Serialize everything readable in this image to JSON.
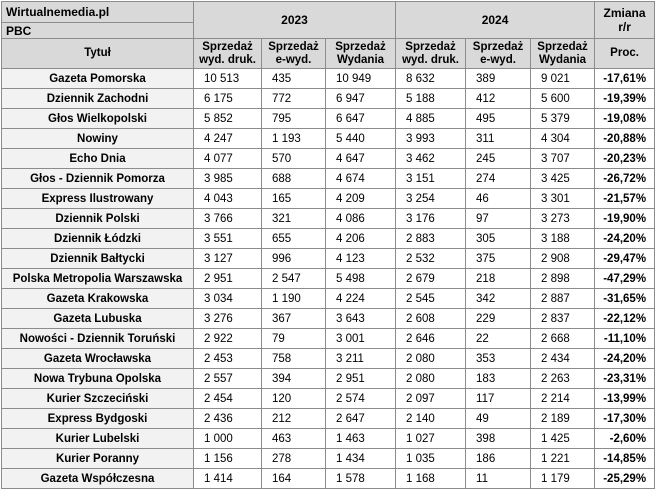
{
  "header": {
    "source": "Wirtualnemedia.pl",
    "pbc": "PBC",
    "year1": "2023",
    "year2": "2024",
    "change_title": "Zmiana r/r",
    "col_title": "Tytuł",
    "col_print_1": "Sprzedaż wyd. druk.",
    "col_e_1": "Sprzedaż e-wyd.",
    "col_total_1": "Sprzedaż Wydania",
    "col_print_2": "Sprzedaż wyd. druk.",
    "col_e_2": "Sprzedaż e-wyd.",
    "col_total_2": "Sprzedaż Wydania",
    "col_pct": "Proc."
  },
  "rows": [
    {
      "title": "Gazeta Pomorska",
      "p23": "10 513",
      "e23": "435",
      "t23": "10 949",
      "p24": "8 632",
      "e24": "389",
      "t24": "9 021",
      "pct": "-17,61%"
    },
    {
      "title": "Dziennik Zachodni",
      "p23": "6 175",
      "e23": "772",
      "t23": "6 947",
      "p24": "5 188",
      "e24": "412",
      "t24": "5 600",
      "pct": "-19,39%"
    },
    {
      "title": "Głos Wielkopolski",
      "p23": "5 852",
      "e23": "795",
      "t23": "6 647",
      "p24": "4 885",
      "e24": "495",
      "t24": "5 379",
      "pct": "-19,08%"
    },
    {
      "title": "Nowiny",
      "p23": "4 247",
      "e23": "1 193",
      "t23": "5 440",
      "p24": "3 993",
      "e24": "311",
      "t24": "4 304",
      "pct": "-20,88%"
    },
    {
      "title": "Echo Dnia",
      "p23": "4 077",
      "e23": "570",
      "t23": "4 647",
      "p24": "3 462",
      "e24": "245",
      "t24": "3 707",
      "pct": "-20,23%"
    },
    {
      "title": "Głos - Dziennik Pomorza",
      "p23": "3 985",
      "e23": "688",
      "t23": "4 674",
      "p24": "3 151",
      "e24": "274",
      "t24": "3 425",
      "pct": "-26,72%"
    },
    {
      "title": "Express Ilustrowany",
      "p23": "4 043",
      "e23": "165",
      "t23": "4 209",
      "p24": "3 254",
      "e24": "46",
      "t24": "3 301",
      "pct": "-21,57%"
    },
    {
      "title": "Dziennik Polski",
      "p23": "3 766",
      "e23": "321",
      "t23": "4 086",
      "p24": "3 176",
      "e24": "97",
      "t24": "3 273",
      "pct": "-19,90%"
    },
    {
      "title": "Dziennik Łódzki",
      "p23": "3 551",
      "e23": "655",
      "t23": "4 206",
      "p24": "2 883",
      "e24": "305",
      "t24": "3 188",
      "pct": "-24,20%"
    },
    {
      "title": "Dziennik Bałtycki",
      "p23": "3 127",
      "e23": "996",
      "t23": "4 123",
      "p24": "2 532",
      "e24": "375",
      "t24": "2 908",
      "pct": "-29,47%"
    },
    {
      "title": "Polska Metropolia Warszawska",
      "p23": "2 951",
      "e23": "2 547",
      "t23": "5 498",
      "p24": "2 679",
      "e24": "218",
      "t24": "2 898",
      "pct": "-47,29%"
    },
    {
      "title": "Gazeta Krakowska",
      "p23": "3 034",
      "e23": "1 190",
      "t23": "4 224",
      "p24": "2 545",
      "e24": "342",
      "t24": "2 887",
      "pct": "-31,65%"
    },
    {
      "title": "Gazeta Lubuska",
      "p23": "3 276",
      "e23": "367",
      "t23": "3 643",
      "p24": "2 608",
      "e24": "229",
      "t24": "2 837",
      "pct": "-22,12%"
    },
    {
      "title": "Nowości - Dziennik Toruński",
      "p23": "2 922",
      "e23": "79",
      "t23": "3 001",
      "p24": "2 646",
      "e24": "22",
      "t24": "2 668",
      "pct": "-11,10%"
    },
    {
      "title": "Gazeta Wrocławska",
      "p23": "2 453",
      "e23": "758",
      "t23": "3 211",
      "p24": "2 080",
      "e24": "353",
      "t24": "2 434",
      "pct": "-24,20%"
    },
    {
      "title": "Nowa Trybuna Opolska",
      "p23": "2 557",
      "e23": "394",
      "t23": "2 951",
      "p24": "2 080",
      "e24": "183",
      "t24": "2 263",
      "pct": "-23,31%"
    },
    {
      "title": "Kurier Szczeciński",
      "p23": "2 454",
      "e23": "120",
      "t23": "2 574",
      "p24": "2 097",
      "e24": "117",
      "t24": "2 214",
      "pct": "-13,99%"
    },
    {
      "title": "Express Bydgoski",
      "p23": "2 436",
      "e23": "212",
      "t23": "2 647",
      "p24": "2 140",
      "e24": "49",
      "t24": "2 189",
      "pct": "-17,30%"
    },
    {
      "title": "Kurier Lubelski",
      "p23": "1 000",
      "e23": "463",
      "t23": "1 463",
      "p24": "1 027",
      "e24": "398",
      "t24": "1 425",
      "pct": "-2,60%"
    },
    {
      "title": "Kurier Poranny",
      "p23": "1 156",
      "e23": "278",
      "t23": "1 434",
      "p24": "1 035",
      "e24": "186",
      "t24": "1 221",
      "pct": "-14,85%"
    },
    {
      "title": "Gazeta Współczesna",
      "p23": "1 414",
      "e23": "164",
      "t23": "1 578",
      "p24": "1 168",
      "e24": "11",
      "t24": "1 179",
      "pct": "-25,29%"
    }
  ]
}
